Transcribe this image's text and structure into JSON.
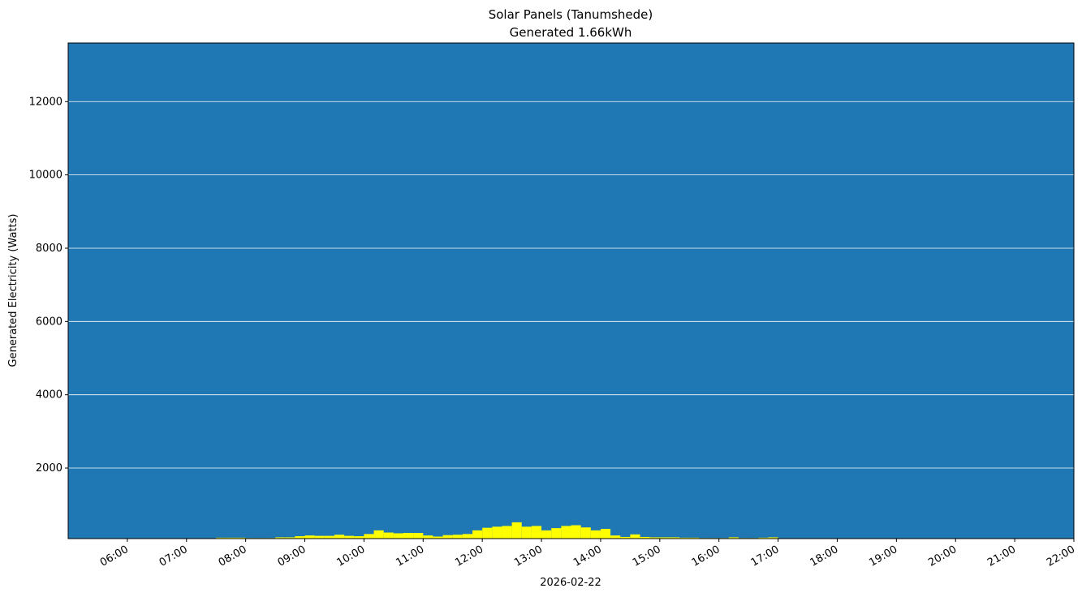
{
  "chart_data": {
    "type": "bar",
    "title": "Solar Panels (Tanumshede)",
    "subtitle": "Generated 1.66kWh",
    "ylabel": "Generated Electricity (Watts)",
    "xlabel": "2026-02-22",
    "x": [
      "07:30",
      "07:40",
      "07:50",
      "08:00",
      "08:10",
      "08:20",
      "08:30",
      "08:40",
      "08:50",
      "09:00",
      "09:10",
      "09:20",
      "09:30",
      "09:40",
      "09:50",
      "10:00",
      "10:10",
      "10:20",
      "10:30",
      "10:40",
      "10:50",
      "11:00",
      "11:10",
      "11:20",
      "11:30",
      "11:40",
      "11:50",
      "12:00",
      "12:10",
      "12:20",
      "12:30",
      "12:40",
      "12:50",
      "13:00",
      "13:10",
      "13:20",
      "13:30",
      "13:40",
      "13:50",
      "14:00",
      "14:10",
      "14:20",
      "14:30",
      "14:40",
      "14:50",
      "15:00",
      "15:10",
      "15:20",
      "15:30",
      "15:40",
      "15:50",
      "16:00",
      "16:10",
      "16:20",
      "16:30",
      "16:40",
      "16:50"
    ],
    "values": [
      100,
      100,
      100,
      90,
      90,
      90,
      110,
      110,
      140,
      160,
      150,
      150,
      180,
      150,
      140,
      200,
      300,
      240,
      220,
      230,
      230,
      160,
      130,
      170,
      180,
      200,
      300,
      370,
      400,
      420,
      520,
      400,
      420,
      300,
      360,
      420,
      440,
      380,
      300,
      340,
      160,
      120,
      190,
      120,
      110,
      110,
      110,
      100,
      100,
      90,
      90,
      90,
      110,
      90,
      90,
      100,
      110
    ],
    "color": "#ffff00",
    "background": "#1f77b4",
    "grid": true,
    "xlim": [
      "05:00",
      "22:00"
    ],
    "xticks": [
      "06:00",
      "07:00",
      "08:00",
      "09:00",
      "10:00",
      "11:00",
      "12:00",
      "13:00",
      "14:00",
      "15:00",
      "16:00",
      "17:00",
      "18:00",
      "19:00",
      "20:00",
      "21:00",
      "22:00"
    ],
    "ylim": [
      75,
      13600
    ],
    "yticks": [
      2000,
      4000,
      6000,
      8000,
      10000,
      12000
    ]
  }
}
